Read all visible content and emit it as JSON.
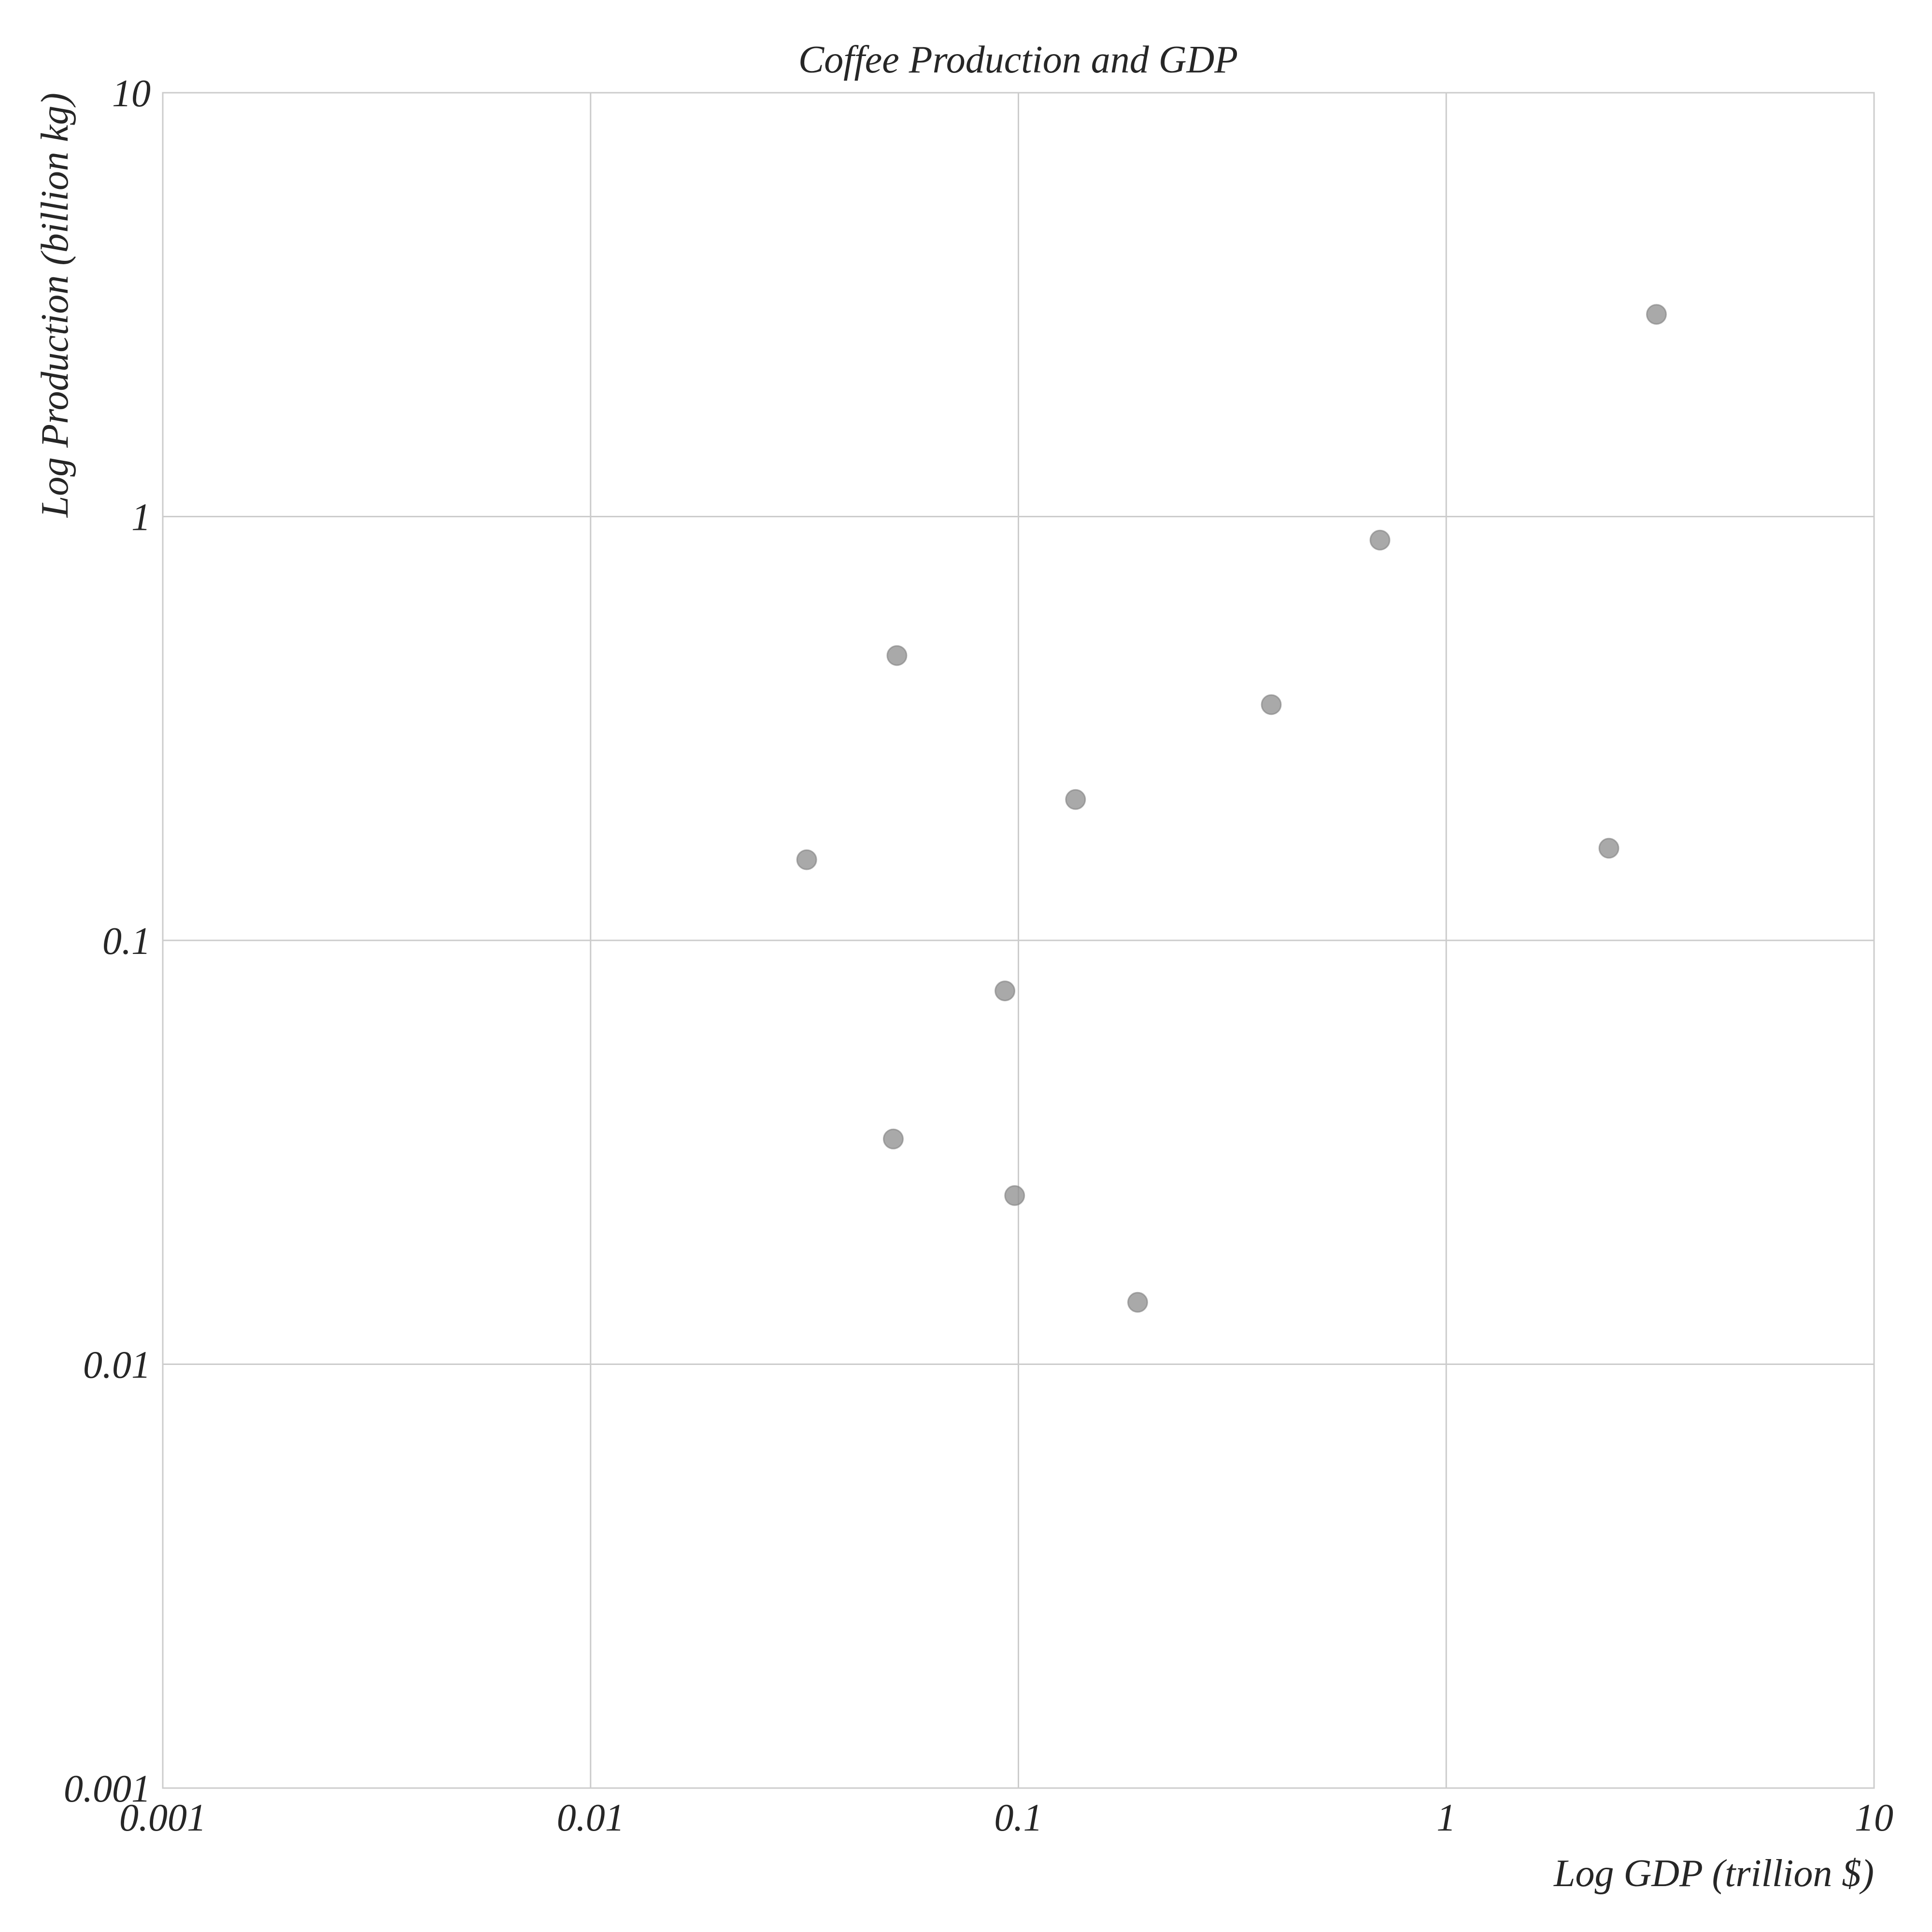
{
  "chart_data": {
    "type": "scatter",
    "title": "Coffee Production and GDP",
    "xlabel": "Log GDP (trillion $)",
    "ylabel": "Log Production (billion kg)",
    "xscale": "log",
    "yscale": "log",
    "xlim": [
      0.001,
      10
    ],
    "ylim": [
      0.001,
      10
    ],
    "grid": true,
    "x_ticks": [
      {
        "value": 0.001,
        "label": "0.001"
      },
      {
        "value": 0.01,
        "label": "0.01"
      },
      {
        "value": 0.1,
        "label": "0.1"
      },
      {
        "value": 1,
        "label": "1"
      },
      {
        "value": 10,
        "label": "10"
      }
    ],
    "y_ticks": [
      {
        "value": 0.001,
        "label": "0.001"
      },
      {
        "value": 0.01,
        "label": "0.01"
      },
      {
        "value": 0.1,
        "label": "0.1"
      },
      {
        "value": 1,
        "label": "1"
      },
      {
        "value": 10,
        "label": "10"
      }
    ],
    "colors": {
      "point": "#8c8c8c",
      "grid": "#cccccc",
      "text": "#262626"
    },
    "series": [
      {
        "points": [
          {
            "x": 3.1,
            "y": 3.0
          },
          {
            "x": 0.7,
            "y": 0.88
          },
          {
            "x": 0.052,
            "y": 0.47
          },
          {
            "x": 0.39,
            "y": 0.36
          },
          {
            "x": 0.136,
            "y": 0.215
          },
          {
            "x": 0.032,
            "y": 0.155
          },
          {
            "x": 2.4,
            "y": 0.165
          },
          {
            "x": 0.093,
            "y": 0.076
          },
          {
            "x": 0.051,
            "y": 0.034
          },
          {
            "x": 0.098,
            "y": 0.025
          },
          {
            "x": 0.19,
            "y": 0.014
          }
        ]
      }
    ]
  }
}
